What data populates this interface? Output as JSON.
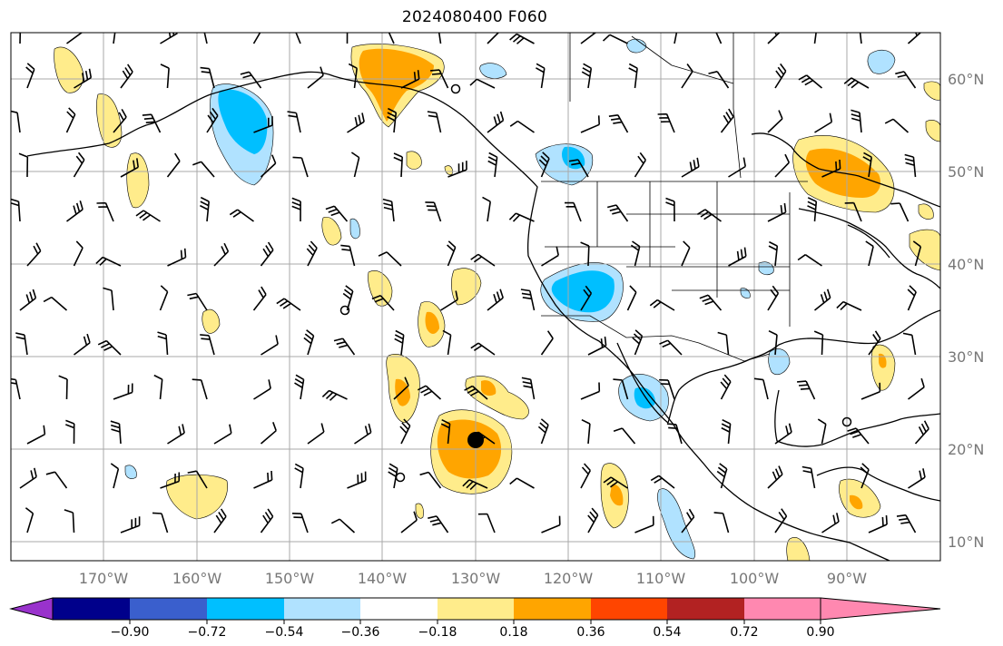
{
  "title": "2024080400 F060",
  "map": {
    "projection": "PlateCarree",
    "lon_range": [
      -180,
      -79
    ],
    "lat_range": [
      8,
      65
    ],
    "gridlines": true,
    "lon_ticks": [
      "170°W",
      "160°W",
      "150°W",
      "140°W",
      "130°W",
      "120°W",
      "110°W",
      "100°W",
      "90°W"
    ],
    "lat_ticks": [
      "60°N",
      "50°N",
      "40°N",
      "30°N",
      "20°N",
      "10°N"
    ],
    "marker": {
      "lon": -130,
      "lat": 21,
      "shape": "filled-circle"
    }
  },
  "colorbar": {
    "ticks": [
      "−0.90",
      "−0.72",
      "−0.54",
      "−0.36",
      "−0.18",
      "0.18",
      "0.36",
      "0.54",
      "0.72",
      "0.90"
    ],
    "colors": [
      "#9932cc",
      "#00008b",
      "#3a5fcd",
      "#00bfff",
      "#b0e2ff",
      "#ffffff",
      "#ffec8b",
      "#ffa500",
      "#ff4500",
      "#b22222",
      "#ff88b0"
    ],
    "extend": "both"
  },
  "colors": {
    "orange": "#ffa500",
    "yellow": "#ffec8b",
    "cyan": "#00bfff",
    "light_blue": "#b0e2ff",
    "grid": "#a9a9a9",
    "tick_text": "#777777"
  }
}
